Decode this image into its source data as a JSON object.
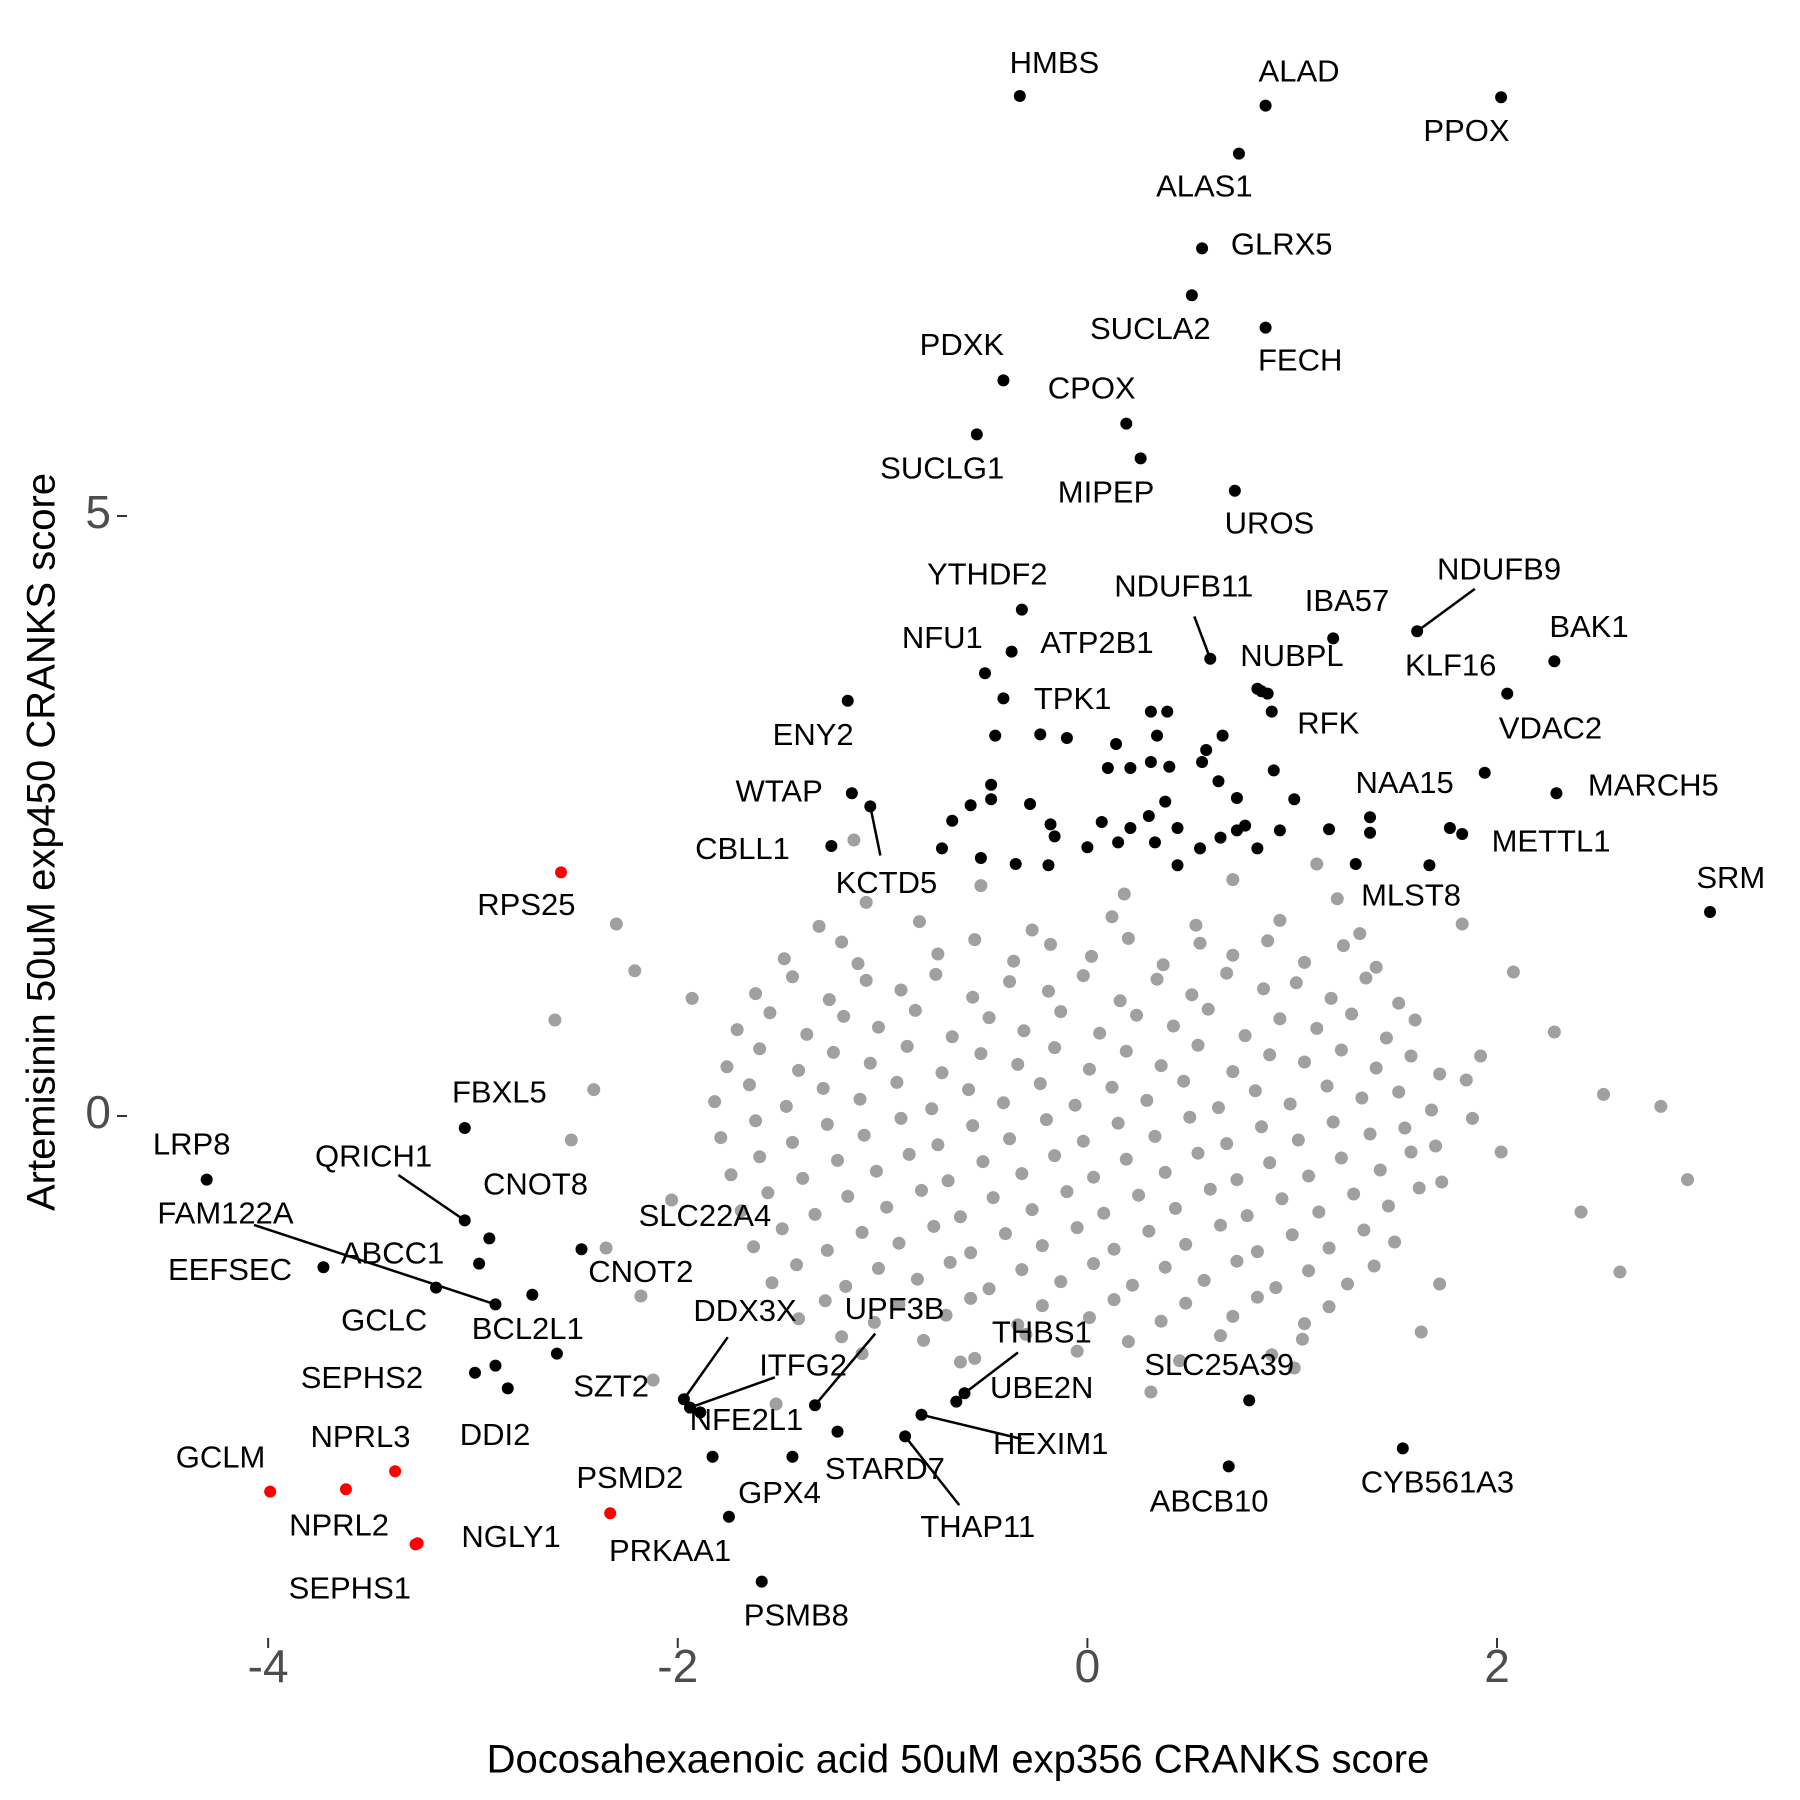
{
  "chart_data": {
    "type": "scatter",
    "x_label": "Docosahexaenoic acid 50uM exp356 CRANKS score",
    "y_label": "Artemisinin 50uM exp450 CRANKS score",
    "xlim": [
      -4.65,
      3.45
    ],
    "ylim": [
      -4.4,
      8.85
    ],
    "xticks": [
      -4,
      -2,
      0,
      2
    ],
    "yticks": [
      0,
      5
    ],
    "grid": false,
    "series": [
      {
        "color": "#a0a0a0",
        "x": [
          -0.52,
          0.18,
          0.71,
          1.22,
          -1.08,
          -1.31,
          -0.82,
          -0.27,
          0.12,
          0.53,
          0.94,
          1.33,
          -1.48,
          -1.12,
          -0.73,
          -0.36,
          0.02,
          0.37,
          0.71,
          1.06,
          1.41,
          -1.62,
          -1.26,
          -0.91,
          -0.56,
          -0.19,
          0.16,
          0.51,
          0.86,
          1.19,
          1.52,
          -1.71,
          -1.37,
          -1.02,
          -0.66,
          -0.31,
          0.06,
          0.42,
          0.77,
          1.12,
          1.46,
          -1.76,
          -1.41,
          -1.06,
          -0.71,
          -0.34,
          0.01,
          0.36,
          0.71,
          1.06,
          1.41,
          1.72,
          -1.82,
          -1.47,
          -1.11,
          -0.76,
          -0.41,
          -0.06,
          0.29,
          0.64,
          0.99,
          1.34,
          1.68,
          -1.79,
          -1.44,
          -1.09,
          -0.73,
          -0.38,
          -0.02,
          0.33,
          0.68,
          1.03,
          1.38,
          1.7,
          -1.74,
          -1.39,
          -1.03,
          -0.68,
          -0.32,
          0.03,
          0.38,
          0.73,
          1.08,
          1.43,
          1.73,
          -1.69,
          -1.33,
          -0.98,
          -0.62,
          -0.27,
          0.08,
          0.43,
          0.78,
          1.13,
          1.47,
          -1.63,
          -1.27,
          -0.92,
          -0.57,
          -0.22,
          0.13,
          0.48,
          0.83,
          1.18,
          1.5,
          -1.54,
          -1.18,
          -0.83,
          -0.48,
          -0.13,
          0.22,
          0.57,
          0.92,
          1.27,
          -1.41,
          -1.04,
          -0.69,
          -0.34,
          0.01,
          0.36,
          0.71,
          1.06,
          -1.1,
          -0.55,
          -0.05,
          0.45,
          0.9,
          -1.2,
          -0.55,
          -0.18,
          0.2,
          0.55,
          0.88,
          1.25,
          -1.44,
          -1.08,
          -0.74,
          -0.38,
          -0.02,
          0.34,
          0.68,
          1.02,
          1.36,
          -1.55,
          -1.19,
          -0.84,
          -0.48,
          -0.13,
          0.24,
          0.59,
          0.94,
          1.29,
          1.6,
          -1.6,
          -1.24,
          -0.88,
          -0.52,
          -0.16,
          0.19,
          0.54,
          0.89,
          1.24,
          1.58,
          -1.65,
          -1.29,
          -0.93,
          -0.58,
          -0.23,
          0.12,
          0.47,
          0.82,
          1.17,
          1.52,
          1.85,
          -1.62,
          -1.27,
          -0.91,
          -0.56,
          -0.2,
          0.15,
          0.5,
          0.85,
          1.2,
          1.55,
          1.88,
          -1.6,
          -1.22,
          -0.87,
          -0.51,
          -0.16,
          0.19,
          0.54,
          0.89,
          1.24,
          1.58,
          -1.56,
          -1.17,
          -0.81,
          -0.46,
          -0.1,
          0.25,
          0.6,
          0.95,
          1.3,
          1.62,
          -1.49,
          -1.1,
          -0.75,
          -0.4,
          -0.05,
          0.3,
          0.65,
          1.0,
          1.35,
          -1.42,
          -1.02,
          -0.67,
          -0.32,
          0.03,
          0.38,
          0.73,
          1.08,
          1.4,
          -1.28,
          -0.92,
          -0.57,
          -0.22,
          0.13,
          0.48,
          0.83,
          1.18,
          -1.2,
          -0.8,
          -0.3,
          0.2,
          0.65,
          1.05,
          -2.21,
          -2.3,
          -2.52,
          -2.41,
          -1.93,
          2.8,
          2.93,
          2.52,
          2.41,
          2.28,
          1.92,
          2.08,
          1.72,
          1.63,
          -2.18,
          -2.12,
          -1.52,
          0.31,
          -0.62,
          1.01,
          1.83,
          2.02,
          -2.6,
          -2.03,
          1.12,
          -1.14,
          -2.35,
          2.6
        ],
        "y": [
          1.92,
          1.85,
          1.97,
          1.81,
          1.78,
          1.58,
          1.62,
          1.55,
          1.66,
          1.59,
          1.63,
          1.52,
          1.31,
          1.27,
          1.35,
          1.29,
          1.33,
          1.26,
          1.34,
          1.28,
          1.24,
          1.02,
          0.97,
          1.05,
          0.99,
          1.04,
          0.96,
          1.01,
          1.06,
          0.98,
          0.94,
          0.72,
          0.68,
          0.74,
          0.66,
          0.71,
          0.69,
          0.75,
          0.67,
          0.73,
          0.65,
          0.41,
          0.38,
          0.44,
          0.36,
          0.43,
          0.39,
          0.42,
          0.37,
          0.45,
          0.4,
          0.35,
          0.12,
          0.08,
          0.14,
          0.06,
          0.11,
          0.09,
          0.13,
          0.07,
          0.1,
          0.15,
          0.05,
          -0.18,
          -0.22,
          -0.16,
          -0.24,
          -0.19,
          -0.21,
          -0.17,
          -0.23,
          -0.2,
          -0.15,
          -0.25,
          -0.49,
          -0.52,
          -0.46,
          -0.54,
          -0.48,
          -0.51,
          -0.47,
          -0.53,
          -0.5,
          -0.45,
          -0.55,
          -0.79,
          -0.82,
          -0.76,
          -0.84,
          -0.78,
          -0.81,
          -0.77,
          -0.83,
          -0.8,
          -0.75,
          -1.09,
          -1.12,
          -1.06,
          -1.14,
          -1.08,
          -1.11,
          -1.07,
          -1.13,
          -1.1,
          -1.05,
          -1.39,
          -1.42,
          -1.36,
          -1.44,
          -1.38,
          -1.41,
          -1.37,
          -1.43,
          -1.4,
          -1.69,
          -1.72,
          -1.66,
          -1.74,
          -1.68,
          -1.71,
          -1.67,
          -1.73,
          -1.98,
          -2.02,
          -1.96,
          -2.04,
          -1.99,
          1.45,
          1.47,
          1.43,
          1.48,
          1.44,
          1.46,
          1.42,
          1.16,
          1.13,
          1.18,
          1.12,
          1.17,
          1.14,
          1.19,
          1.11,
          1.15,
          0.86,
          0.83,
          0.88,
          0.82,
          0.87,
          0.84,
          0.89,
          0.81,
          0.85,
          0.8,
          0.56,
          0.53,
          0.58,
          0.52,
          0.57,
          0.54,
          0.59,
          0.51,
          0.55,
          0.5,
          0.26,
          0.23,
          0.28,
          0.22,
          0.27,
          0.24,
          0.29,
          0.21,
          0.25,
          0.2,
          0.3,
          -0.04,
          -0.07,
          -0.02,
          -0.08,
          -0.03,
          -0.06,
          -0.01,
          -0.09,
          -0.05,
          -0.1,
          -0.02,
          -0.34,
          -0.37,
          -0.32,
          -0.38,
          -0.33,
          -0.36,
          -0.31,
          -0.39,
          -0.35,
          -0.3,
          -0.64,
          -0.67,
          -0.62,
          -0.68,
          -0.63,
          -0.66,
          -0.61,
          -0.69,
          -0.65,
          -0.6,
          -0.94,
          -0.97,
          -0.92,
          -0.98,
          -0.93,
          -0.96,
          -0.91,
          -0.99,
          -0.95,
          -1.24,
          -1.27,
          -1.22,
          -1.28,
          -1.23,
          -1.26,
          -1.21,
          -1.29,
          -1.25,
          -1.54,
          -1.57,
          -1.52,
          -1.58,
          -1.53,
          -1.56,
          -1.51,
          -1.59,
          -1.84,
          -1.87,
          -1.82,
          -1.88,
          -1.83,
          -1.86,
          1.21,
          1.6,
          -0.2,
          0.22,
          0.98,
          0.08,
          -0.53,
          0.18,
          -0.8,
          0.7,
          0.5,
          1.2,
          -1.4,
          -1.8,
          -1.5,
          -2.2,
          -2.4,
          -2.3,
          -2.05,
          -2.1,
          1.6,
          -0.3,
          0.8,
          -0.7,
          2.1,
          2.3,
          -1.1,
          -1.3
        ]
      },
      {
        "color": "#000000",
        "x": [
          -0.33,
          0.87,
          2.02,
          0.74,
          0.56,
          0.51,
          0.87,
          -0.41,
          0.19,
          -0.54,
          0.26,
          0.72,
          -0.32,
          0.6,
          1.2,
          1.61,
          -0.37,
          -0.5,
          0.83,
          0.9,
          2.05,
          2.28,
          1.94,
          -0.41,
          -1.17,
          -1.15,
          -1.06,
          -1.25,
          1.38,
          2.29,
          1.83,
          1.31,
          3.04,
          -3.04,
          -4.3,
          -3.04,
          -2.92,
          -2.97,
          -2.89,
          -3.18,
          -3.73,
          -2.71,
          -2.47,
          -2.89,
          -2.99,
          -2.83,
          -2.59,
          -1.97,
          -1.94,
          -1.89,
          -1.33,
          -1.83,
          -1.22,
          -1.75,
          -1.59,
          -0.6,
          -0.64,
          -0.81,
          -0.89,
          0.79,
          0.69,
          1.54,
          -1.44,
          -0.45,
          -0.23,
          -0.1,
          0.14,
          0.31,
          0.39,
          0.34,
          0.1,
          0.21,
          0.31,
          0.4,
          0.58,
          0.56,
          0.66,
          0.64,
          0.91,
          1.01,
          -0.47,
          -0.47,
          -0.57,
          -0.66,
          -0.28,
          -0.18,
          -0.16,
          0,
          0.07,
          0.21,
          0.3,
          0.33,
          0.44,
          0.44,
          0.55,
          0.65,
          0.73,
          0.77,
          0.83,
          0.94,
          0.73,
          -0.35,
          -0.52,
          -0.71,
          1.18,
          1.38,
          1.67,
          1.77,
          0.85,
          0.88,
          -0.19,
          0.15,
          0.38
        ],
        "y": [
          8.5,
          8.42,
          8.49,
          8.02,
          7.23,
          6.84,
          6.57,
          6.13,
          5.77,
          5.68,
          5.48,
          5.21,
          4.22,
          3.81,
          3.98,
          4.04,
          3.87,
          3.69,
          3.56,
          3.37,
          3.52,
          3.79,
          2.86,
          3.48,
          3.46,
          2.69,
          2.58,
          2.25,
          2.49,
          2.69,
          2.35,
          2.1,
          1.7,
          -0.1,
          -0.53,
          -0.87,
          -1.02,
          -1.23,
          -1.57,
          -1.43,
          -1.26,
          -1.49,
          -1.11,
          -2.08,
          -2.14,
          -2.27,
          -1.98,
          -2.36,
          -2.43,
          -2.47,
          -2.41,
          -2.84,
          -2.63,
          -3.34,
          -3.88,
          -2.31,
          -2.38,
          -2.49,
          -2.67,
          -2.37,
          -2.92,
          -2.77,
          -2.84,
          3.17,
          3.18,
          3.15,
          3.1,
          3.37,
          3.37,
          3.17,
          2.9,
          2.9,
          2.95,
          2.91,
          3.05,
          2.95,
          3.17,
          2.79,
          2.88,
          2.64,
          2.76,
          2.64,
          2.59,
          2.46,
          2.6,
          2.43,
          2.33,
          2.24,
          2.45,
          2.4,
          2.5,
          2.28,
          2.4,
          2.09,
          2.23,
          2.32,
          2.65,
          2.42,
          2.23,
          2.38,
          2.38,
          2.1,
          2.15,
          2.23,
          2.39,
          2.36,
          2.09,
          2.4,
          3.54,
          3.52,
          2.09,
          2.28,
          2.62
        ],
        "labels": [
          "HMBS",
          "ALAD",
          "PPOX",
          "ALAS1",
          "GLRX5",
          "SUCLA2",
          "FECH",
          "PDXK",
          "CPOX",
          "SUCLG1",
          "MIPEP",
          "UROS",
          "YTHDF2",
          "NDUFB11",
          "IBA57",
          "NDUFB9",
          "ATP2B1",
          "NFU1",
          "NUBPL",
          "RFK",
          "KLF16",
          "BAK1",
          "VDAC2",
          "TPK1",
          "ENY2",
          "WTAP",
          "KCTD5",
          "CBLL1",
          "NAA15",
          "MARCH5",
          "METTL1",
          "MLST8",
          "SRM",
          "FBXL5",
          "LRP8",
          "QRICH1",
          "CNOT8",
          "ABCC1",
          "FAM122A",
          "GCLC",
          "EEFSEC",
          "CNOT2",
          "SLC22A4",
          "BCL2L1",
          "SEPHS2",
          "DDI2",
          "SZT2",
          "DDX3X",
          "ITFG2",
          "NFE2L1",
          "UPF3B",
          "GPX4",
          "STARD7",
          "PRKAA1",
          "PSMB8",
          "THBS1",
          "UBE2N",
          "HEXIM1",
          "THAP11",
          "SLC25A39",
          "ABCB10",
          "CYB561A3",
          null,
          null,
          null,
          null,
          null,
          null,
          null,
          null,
          null,
          null,
          null,
          null,
          null,
          null,
          null,
          null,
          null,
          null,
          null,
          null,
          null,
          null,
          null,
          null,
          null,
          null,
          null,
          null,
          null,
          null,
          null,
          null,
          null,
          null,
          null,
          null,
          null,
          null,
          null,
          null,
          null,
          null,
          null,
          null,
          null,
          null,
          null,
          null,
          null,
          null,
          null
        ]
      },
      {
        "color": "#ff0000",
        "x": [
          -2.57,
          -3.99,
          -3.38,
          -3.62,
          -3.27,
          -3.28,
          -2.33
        ],
        "y": [
          2.03,
          -3.13,
          -2.96,
          -3.11,
          -3.56,
          -3.57,
          -3.31
        ],
        "labels": [
          "RPS25",
          "GCLM",
          "NPRL3",
          "NPRL2",
          "NGLY1",
          "SEPHS1",
          "PSMD2"
        ]
      }
    ]
  }
}
